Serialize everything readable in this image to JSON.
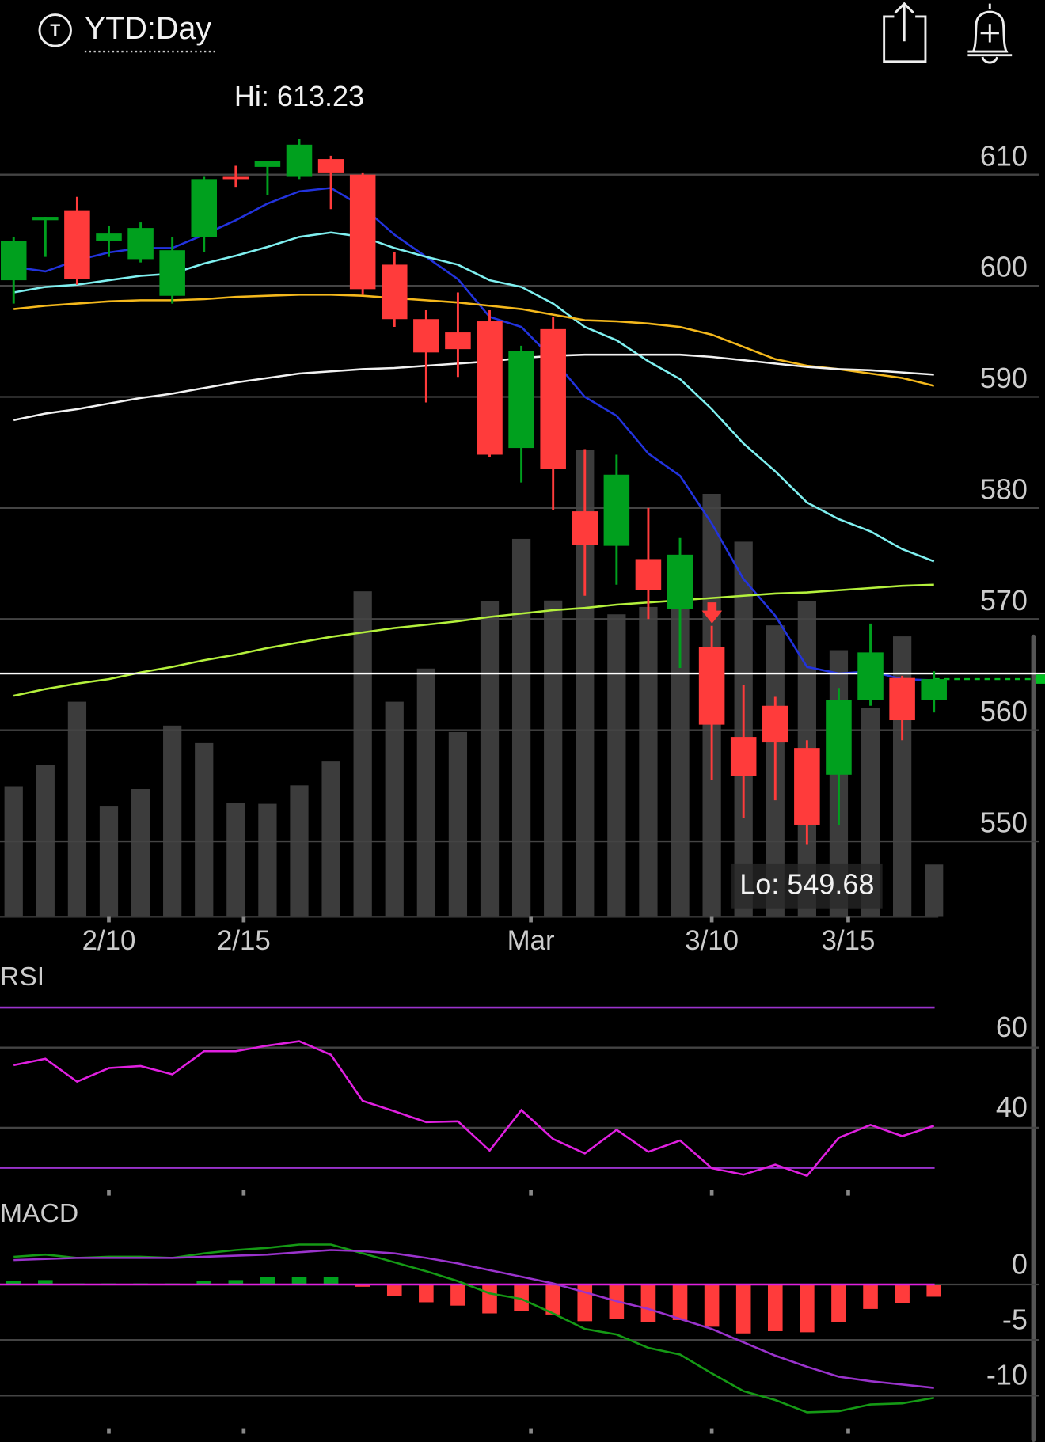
{
  "header": {
    "title": "YTD:Day",
    "icon_letter": "T"
  },
  "chart_data": [
    {
      "type": "candlestick",
      "xlim": [
        -0.43,
        32.5
      ],
      "ylim": [
        543.2,
        619.1
      ],
      "yticks": [
        550,
        560,
        570,
        580,
        590,
        600,
        610
      ],
      "grid": true,
      "xticks": [
        {
          "value": 3,
          "label": "2/10"
        },
        {
          "value": 7.25,
          "label": "2/15"
        },
        {
          "value": 16.3,
          "label": "Mar"
        },
        {
          "value": 22,
          "label": "3/10"
        },
        {
          "value": 26.3,
          "label": "3/15"
        }
      ],
      "up_color": "#00a01e",
      "down_color": "#ff3b3b",
      "open": [
        600.5,
        605.9,
        606.8,
        604.0,
        602.4,
        599.1,
        604.4,
        609.8,
        610.7,
        609.8,
        611.4,
        610.0,
        601.9,
        597.0,
        595.8,
        596.8,
        585.4,
        596.1,
        579.7,
        576.6,
        575.4,
        570.9,
        567.5,
        559.4,
        562.2,
        558.4,
        556.0,
        562.7,
        564.7,
        562.7
      ],
      "high": [
        604.4,
        606.2,
        608.0,
        605.4,
        605.7,
        604.4,
        609.8,
        610.8,
        611.2,
        613.23,
        611.7,
        610.2,
        603.0,
        597.8,
        599.4,
        597.8,
        594.6,
        597.2,
        585.3,
        584.8,
        580.0,
        577.3,
        569.4,
        564.1,
        563.0,
        559.1,
        563.8,
        569.6,
        564.9,
        565.3
      ],
      "low": [
        598.4,
        602.6,
        600.1,
        602.6,
        602.1,
        598.4,
        603.0,
        608.9,
        608.2,
        609.6,
        606.9,
        599.2,
        596.3,
        589.5,
        591.8,
        584.6,
        582.3,
        579.8,
        572.1,
        573.1,
        570.0,
        565.6,
        555.5,
        552.1,
        553.7,
        549.68,
        551.5,
        562.2,
        559.1,
        561.6
      ],
      "close": [
        604.0,
        606.2,
        600.6,
        604.7,
        605.2,
        603.2,
        609.6,
        609.6,
        611.2,
        612.7,
        610.2,
        599.7,
        597.0,
        594.0,
        594.3,
        584.8,
        594.1,
        583.5,
        576.7,
        583.0,
        572.6,
        575.8,
        560.5,
        555.9,
        558.9,
        551.5,
        562.7,
        567.0,
        560.9,
        564.6
      ],
      "volume": {
        "color": "#3c3c3c",
        "values": [
          142,
          165,
          234,
          120,
          139,
          208,
          189,
          124,
          123,
          143,
          169,
          354,
          234,
          270,
          201,
          343,
          411,
          344,
          508,
          329,
          337,
          342,
          460,
          408,
          317,
          343,
          290,
          227,
          305,
          57
        ]
      },
      "series": [
        {
          "color": "#2233dd",
          "values": [
            601.7,
            601.3,
            602.3,
            603.0,
            603.4,
            603.4,
            604.6,
            605.9,
            607.4,
            608.5,
            608.8,
            607.1,
            604.6,
            602.6,
            600.6,
            597.2,
            596.3,
            593.4,
            590.0,
            588.3,
            584.9,
            582.9,
            578.6,
            573.6,
            570.3,
            565.7,
            565.1,
            565.3,
            564.6,
            564.5
          ]
        },
        {
          "color": "#7ff0f0",
          "values": [
            599.4,
            599.9,
            600.1,
            600.5,
            600.9,
            601.1,
            602.0,
            602.7,
            603.5,
            604.4,
            604.8,
            604.4,
            603.4,
            602.6,
            601.9,
            600.5,
            599.9,
            598.4,
            596.3,
            595.1,
            593.2,
            591.6,
            588.9,
            585.8,
            583.3,
            580.5,
            579.0,
            577.9,
            576.3,
            575.2
          ]
        },
        {
          "color": "#f4b81c",
          "values": [
            597.9,
            598.2,
            598.4,
            598.6,
            598.7,
            598.7,
            598.8,
            599.0,
            599.1,
            599.2,
            599.2,
            599.1,
            598.9,
            598.7,
            598.5,
            598.2,
            597.9,
            597.4,
            596.9,
            596.8,
            596.6,
            596.3,
            595.6,
            594.5,
            593.4,
            592.8,
            592.5,
            592.1,
            591.7,
            591.0
          ]
        },
        {
          "color": "#f2f2f2",
          "values": [
            587.9,
            588.5,
            588.9,
            589.4,
            589.9,
            590.3,
            590.8,
            591.3,
            591.7,
            592.1,
            592.3,
            592.5,
            592.6,
            592.8,
            593.0,
            593.2,
            593.5,
            593.7,
            593.8,
            593.8,
            593.8,
            593.8,
            593.6,
            593.3,
            593.0,
            592.7,
            592.5,
            592.4,
            592.2,
            592.0
          ]
        },
        {
          "color": "#b4f03c",
          "values": [
            563.1,
            563.7,
            564.2,
            564.6,
            565.2,
            565.7,
            566.3,
            566.8,
            567.4,
            567.9,
            568.4,
            568.8,
            569.2,
            569.5,
            569.8,
            570.2,
            570.5,
            570.8,
            571.0,
            571.3,
            571.5,
            571.7,
            571.9,
            572.1,
            572.3,
            572.4,
            572.6,
            572.8,
            573.0,
            573.1
          ]
        }
      ],
      "price_line": 565.1,
      "last_price_line": 564.6,
      "hi_label": "Hi: 613.23",
      "lo_label": "Lo: 549.68"
    },
    {
      "type": "rsi",
      "title": "RSI",
      "ylim": [
        24,
        80
      ],
      "yticks": [
        40,
        60
      ],
      "grid": true,
      "levels": [
        70,
        30
      ],
      "level_color": "#9a33cc",
      "series": [
        {
          "color": "#e020e0",
          "values": [
            55.6,
            57.2,
            51.5,
            54.9,
            55.4,
            53.3,
            59.1,
            59.1,
            60.5,
            61.6,
            58.2,
            46.7,
            44.1,
            41.4,
            41.6,
            34.3,
            44.4,
            37.2,
            33.6,
            39.5,
            34.0,
            36.8,
            29.9,
            28.3,
            30.8,
            28.0,
            37.5,
            40.7,
            37.9,
            40.5
          ]
        }
      ]
    },
    {
      "type": "macd",
      "title": "MACD",
      "ylim": [
        -13.1,
        4.7
      ],
      "yticks": [
        0,
        -5,
        -10
      ],
      "grid": true,
      "zero_color": "#e020e0",
      "series": [
        {
          "color": "#159915",
          "values": [
            2.5,
            2.7,
            2.4,
            2.5,
            2.5,
            2.4,
            2.8,
            3.1,
            3.3,
            3.6,
            3.6,
            2.8,
            2.0,
            1.2,
            0.3,
            -0.8,
            -1.3,
            -2.6,
            -4.0,
            -4.5,
            -5.7,
            -6.3,
            -8.0,
            -9.6,
            -10.4,
            -11.5,
            -11.4,
            -10.8,
            -10.7,
            -10.2
          ]
        },
        {
          "color": "#9a33cc",
          "values": [
            2.2,
            2.3,
            2.4,
            2.4,
            2.4,
            2.4,
            2.5,
            2.6,
            2.7,
            2.9,
            3.1,
            3.0,
            2.8,
            2.4,
            1.9,
            1.3,
            0.7,
            0.1,
            -0.7,
            -1.5,
            -2.2,
            -3.1,
            -4.0,
            -5.2,
            -6.4,
            -7.4,
            -8.3,
            -8.7,
            -9.0,
            -9.3
          ]
        }
      ],
      "histogram": {
        "up_color": "#00a01e",
        "down_color": "#ff3b3b",
        "values": [
          0.3,
          0.4,
          0.1,
          0.1,
          0.1,
          0.1,
          0.3,
          0.4,
          0.7,
          0.7,
          0.7,
          -0.2,
          -1.0,
          -1.6,
          -1.9,
          -2.6,
          -2.4,
          -2.7,
          -3.3,
          -3.1,
          -3.4,
          -3.2,
          -3.8,
          -4.4,
          -4.2,
          -4.3,
          -3.4,
          -2.2,
          -1.7,
          -1.1
        ]
      }
    }
  ]
}
